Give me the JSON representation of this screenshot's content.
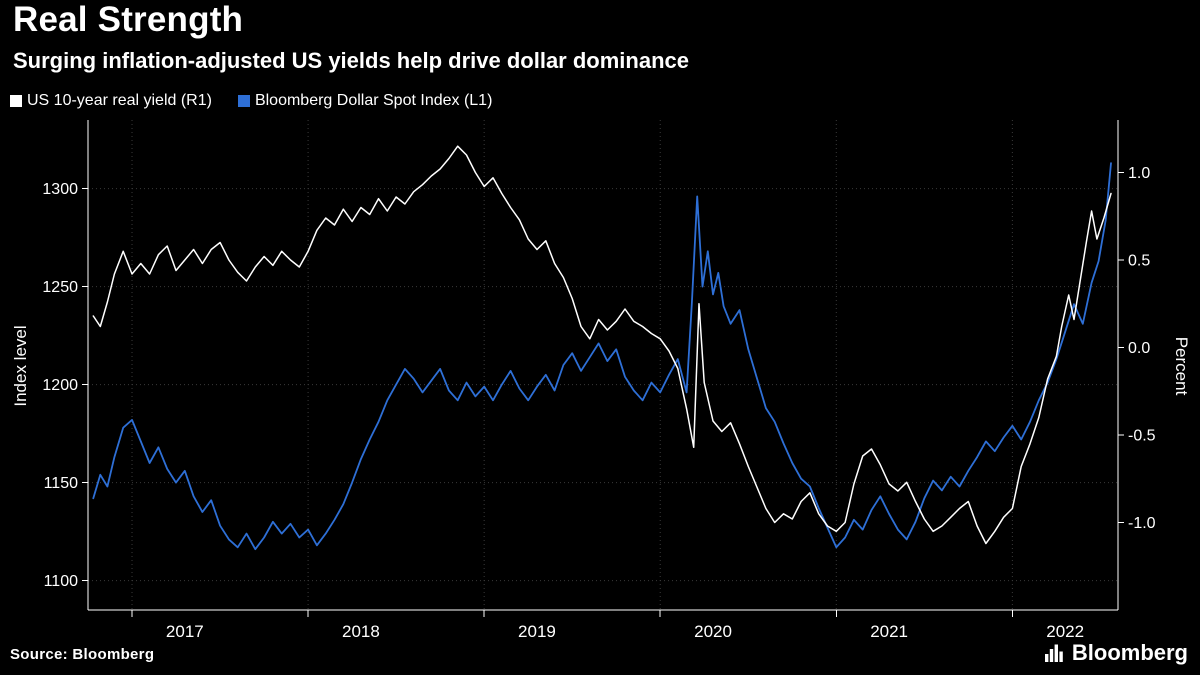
{
  "chart_data": {
    "type": "line",
    "title": "Real Strength",
    "subtitle": "Surging inflation-adjusted US yields help drive dollar dominance",
    "legend_position": "top-left",
    "grid": true,
    "background_color": "#000000",
    "grid_color": "#3a3a3a",
    "axis_color": "#ffffff",
    "x_axis": {
      "range": [
        2016.75,
        2022.6
      ],
      "ticks": [
        2017,
        2018,
        2019,
        2020,
        2021,
        2022
      ],
      "tick_labels": [
        "2017",
        "2018",
        "2019",
        "2020",
        "2021",
        "2022"
      ]
    },
    "left_axis": {
      "label": "Index level",
      "range": [
        1085,
        1335
      ],
      "ticks": [
        1100,
        1150,
        1200,
        1250,
        1300
      ],
      "tick_labels": [
        "1100",
        "1150",
        "1200",
        "1250",
        "1300"
      ]
    },
    "right_axis": {
      "label": "Percent",
      "range": [
        -1.5,
        1.3
      ],
      "ticks": [
        -1.0,
        -0.5,
        0.0,
        0.5,
        1.0
      ],
      "tick_labels": [
        "-1.0",
        "-0.5",
        "0.0",
        "0.5",
        "1.0"
      ]
    },
    "series": [
      {
        "name": "US 10-year real yield (R1)",
        "axis": "right",
        "unit": "percent",
        "color": "#ffffff",
        "points": [
          [
            2016.78,
            0.18
          ],
          [
            2016.82,
            0.12
          ],
          [
            2016.86,
            0.26
          ],
          [
            2016.9,
            0.42
          ],
          [
            2016.95,
            0.55
          ],
          [
            2017.0,
            0.42
          ],
          [
            2017.05,
            0.48
          ],
          [
            2017.1,
            0.42
          ],
          [
            2017.15,
            0.53
          ],
          [
            2017.2,
            0.58
          ],
          [
            2017.25,
            0.44
          ],
          [
            2017.3,
            0.5
          ],
          [
            2017.35,
            0.56
          ],
          [
            2017.4,
            0.48
          ],
          [
            2017.45,
            0.56
          ],
          [
            2017.5,
            0.6
          ],
          [
            2017.55,
            0.5
          ],
          [
            2017.6,
            0.43
          ],
          [
            2017.65,
            0.38
          ],
          [
            2017.7,
            0.46
          ],
          [
            2017.75,
            0.52
          ],
          [
            2017.8,
            0.47
          ],
          [
            2017.85,
            0.55
          ],
          [
            2017.9,
            0.5
          ],
          [
            2017.95,
            0.46
          ],
          [
            2018.0,
            0.55
          ],
          [
            2018.05,
            0.67
          ],
          [
            2018.1,
            0.74
          ],
          [
            2018.15,
            0.7
          ],
          [
            2018.2,
            0.79
          ],
          [
            2018.25,
            0.72
          ],
          [
            2018.3,
            0.8
          ],
          [
            2018.35,
            0.76
          ],
          [
            2018.4,
            0.85
          ],
          [
            2018.45,
            0.78
          ],
          [
            2018.5,
            0.86
          ],
          [
            2018.55,
            0.82
          ],
          [
            2018.6,
            0.89
          ],
          [
            2018.65,
            0.93
          ],
          [
            2018.7,
            0.98
          ],
          [
            2018.75,
            1.02
          ],
          [
            2018.8,
            1.08
          ],
          [
            2018.85,
            1.15
          ],
          [
            2018.9,
            1.1
          ],
          [
            2018.95,
            1.0
          ],
          [
            2019.0,
            0.92
          ],
          [
            2019.05,
            0.97
          ],
          [
            2019.1,
            0.88
          ],
          [
            2019.15,
            0.8
          ],
          [
            2019.2,
            0.73
          ],
          [
            2019.25,
            0.62
          ],
          [
            2019.3,
            0.56
          ],
          [
            2019.35,
            0.61
          ],
          [
            2019.4,
            0.48
          ],
          [
            2019.45,
            0.4
          ],
          [
            2019.5,
            0.28
          ],
          [
            2019.55,
            0.12
          ],
          [
            2019.6,
            0.05
          ],
          [
            2019.65,
            0.16
          ],
          [
            2019.7,
            0.1
          ],
          [
            2019.75,
            0.15
          ],
          [
            2019.8,
            0.22
          ],
          [
            2019.85,
            0.15
          ],
          [
            2019.9,
            0.12
          ],
          [
            2019.95,
            0.08
          ],
          [
            2020.0,
            0.05
          ],
          [
            2020.05,
            -0.02
          ],
          [
            2020.1,
            -0.12
          ],
          [
            2020.15,
            -0.35
          ],
          [
            2020.19,
            -0.57
          ],
          [
            2020.22,
            0.25
          ],
          [
            2020.25,
            -0.2
          ],
          [
            2020.3,
            -0.42
          ],
          [
            2020.35,
            -0.48
          ],
          [
            2020.4,
            -0.43
          ],
          [
            2020.45,
            -0.55
          ],
          [
            2020.5,
            -0.68
          ],
          [
            2020.55,
            -0.8
          ],
          [
            2020.6,
            -0.92
          ],
          [
            2020.65,
            -1.0
          ],
          [
            2020.7,
            -0.95
          ],
          [
            2020.75,
            -0.98
          ],
          [
            2020.8,
            -0.88
          ],
          [
            2020.85,
            -0.83
          ],
          [
            2020.9,
            -0.95
          ],
          [
            2020.95,
            -1.02
          ],
          [
            2021.0,
            -1.05
          ],
          [
            2021.05,
            -1.0
          ],
          [
            2021.1,
            -0.78
          ],
          [
            2021.15,
            -0.62
          ],
          [
            2021.2,
            -0.58
          ],
          [
            2021.25,
            -0.67
          ],
          [
            2021.3,
            -0.78
          ],
          [
            2021.35,
            -0.82
          ],
          [
            2021.4,
            -0.77
          ],
          [
            2021.45,
            -0.88
          ],
          [
            2021.5,
            -0.98
          ],
          [
            2021.55,
            -1.05
          ],
          [
            2021.6,
            -1.02
          ],
          [
            2021.65,
            -0.97
          ],
          [
            2021.7,
            -0.92
          ],
          [
            2021.75,
            -0.88
          ],
          [
            2021.8,
            -1.02
          ],
          [
            2021.85,
            -1.12
          ],
          [
            2021.9,
            -1.05
          ],
          [
            2021.95,
            -0.97
          ],
          [
            2022.0,
            -0.92
          ],
          [
            2022.05,
            -0.68
          ],
          [
            2022.1,
            -0.55
          ],
          [
            2022.15,
            -0.4
          ],
          [
            2022.2,
            -0.18
          ],
          [
            2022.25,
            -0.05
          ],
          [
            2022.28,
            0.12
          ],
          [
            2022.32,
            0.3
          ],
          [
            2022.35,
            0.16
          ],
          [
            2022.38,
            0.35
          ],
          [
            2022.42,
            0.6
          ],
          [
            2022.45,
            0.78
          ],
          [
            2022.48,
            0.62
          ],
          [
            2022.52,
            0.74
          ],
          [
            2022.56,
            0.88
          ]
        ]
      },
      {
        "name": "Bloomberg Dollar Spot Index (L1)",
        "axis": "left",
        "unit": "index",
        "color": "#2e6fd6",
        "points": [
          [
            2016.78,
            1142
          ],
          [
            2016.82,
            1154
          ],
          [
            2016.86,
            1148
          ],
          [
            2016.9,
            1163
          ],
          [
            2016.95,
            1178
          ],
          [
            2017.0,
            1182
          ],
          [
            2017.05,
            1171
          ],
          [
            2017.1,
            1160
          ],
          [
            2017.15,
            1168
          ],
          [
            2017.2,
            1157
          ],
          [
            2017.25,
            1150
          ],
          [
            2017.3,
            1156
          ],
          [
            2017.35,
            1143
          ],
          [
            2017.4,
            1135
          ],
          [
            2017.45,
            1141
          ],
          [
            2017.5,
            1128
          ],
          [
            2017.55,
            1121
          ],
          [
            2017.6,
            1117
          ],
          [
            2017.65,
            1124
          ],
          [
            2017.7,
            1116
          ],
          [
            2017.75,
            1122
          ],
          [
            2017.8,
            1130
          ],
          [
            2017.85,
            1124
          ],
          [
            2017.9,
            1129
          ],
          [
            2017.95,
            1122
          ],
          [
            2018.0,
            1126
          ],
          [
            2018.05,
            1118
          ],
          [
            2018.1,
            1124
          ],
          [
            2018.15,
            1131
          ],
          [
            2018.2,
            1139
          ],
          [
            2018.25,
            1150
          ],
          [
            2018.3,
            1162
          ],
          [
            2018.35,
            1172
          ],
          [
            2018.4,
            1181
          ],
          [
            2018.45,
            1192
          ],
          [
            2018.5,
            1200
          ],
          [
            2018.55,
            1208
          ],
          [
            2018.6,
            1203
          ],
          [
            2018.65,
            1196
          ],
          [
            2018.7,
            1202
          ],
          [
            2018.75,
            1208
          ],
          [
            2018.8,
            1197
          ],
          [
            2018.85,
            1192
          ],
          [
            2018.9,
            1201
          ],
          [
            2018.95,
            1194
          ],
          [
            2019.0,
            1199
          ],
          [
            2019.05,
            1192
          ],
          [
            2019.1,
            1200
          ],
          [
            2019.15,
            1207
          ],
          [
            2019.2,
            1198
          ],
          [
            2019.25,
            1192
          ],
          [
            2019.3,
            1199
          ],
          [
            2019.35,
            1205
          ],
          [
            2019.4,
            1197
          ],
          [
            2019.45,
            1210
          ],
          [
            2019.5,
            1216
          ],
          [
            2019.55,
            1207
          ],
          [
            2019.6,
            1214
          ],
          [
            2019.65,
            1221
          ],
          [
            2019.7,
            1212
          ],
          [
            2019.75,
            1218
          ],
          [
            2019.8,
            1204
          ],
          [
            2019.85,
            1197
          ],
          [
            2019.9,
            1192
          ],
          [
            2019.95,
            1201
          ],
          [
            2020.0,
            1196
          ],
          [
            2020.05,
            1205
          ],
          [
            2020.1,
            1213
          ],
          [
            2020.15,
            1196
          ],
          [
            2020.18,
            1242
          ],
          [
            2020.21,
            1296
          ],
          [
            2020.24,
            1250
          ],
          [
            2020.27,
            1268
          ],
          [
            2020.3,
            1246
          ],
          [
            2020.33,
            1257
          ],
          [
            2020.36,
            1240
          ],
          [
            2020.4,
            1231
          ],
          [
            2020.45,
            1238
          ],
          [
            2020.5,
            1218
          ],
          [
            2020.55,
            1203
          ],
          [
            2020.6,
            1188
          ],
          [
            2020.65,
            1181
          ],
          [
            2020.7,
            1170
          ],
          [
            2020.75,
            1160
          ],
          [
            2020.8,
            1152
          ],
          [
            2020.85,
            1148
          ],
          [
            2020.9,
            1137
          ],
          [
            2020.95,
            1127
          ],
          [
            2021.0,
            1117
          ],
          [
            2021.05,
            1122
          ],
          [
            2021.1,
            1131
          ],
          [
            2021.15,
            1126
          ],
          [
            2021.2,
            1136
          ],
          [
            2021.25,
            1143
          ],
          [
            2021.3,
            1134
          ],
          [
            2021.35,
            1126
          ],
          [
            2021.4,
            1121
          ],
          [
            2021.45,
            1130
          ],
          [
            2021.5,
            1142
          ],
          [
            2021.55,
            1151
          ],
          [
            2021.6,
            1146
          ],
          [
            2021.65,
            1153
          ],
          [
            2021.7,
            1148
          ],
          [
            2021.75,
            1156
          ],
          [
            2021.8,
            1163
          ],
          [
            2021.85,
            1171
          ],
          [
            2021.9,
            1166
          ],
          [
            2021.95,
            1173
          ],
          [
            2022.0,
            1179
          ],
          [
            2022.05,
            1172
          ],
          [
            2022.1,
            1181
          ],
          [
            2022.15,
            1192
          ],
          [
            2022.2,
            1201
          ],
          [
            2022.25,
            1213
          ],
          [
            2022.3,
            1227
          ],
          [
            2022.35,
            1241
          ],
          [
            2022.4,
            1231
          ],
          [
            2022.45,
            1252
          ],
          [
            2022.49,
            1263
          ],
          [
            2022.53,
            1284
          ],
          [
            2022.56,
            1313
          ]
        ]
      }
    ]
  },
  "footer": {
    "source": "Source: Bloomberg",
    "brand": "Bloomberg"
  }
}
